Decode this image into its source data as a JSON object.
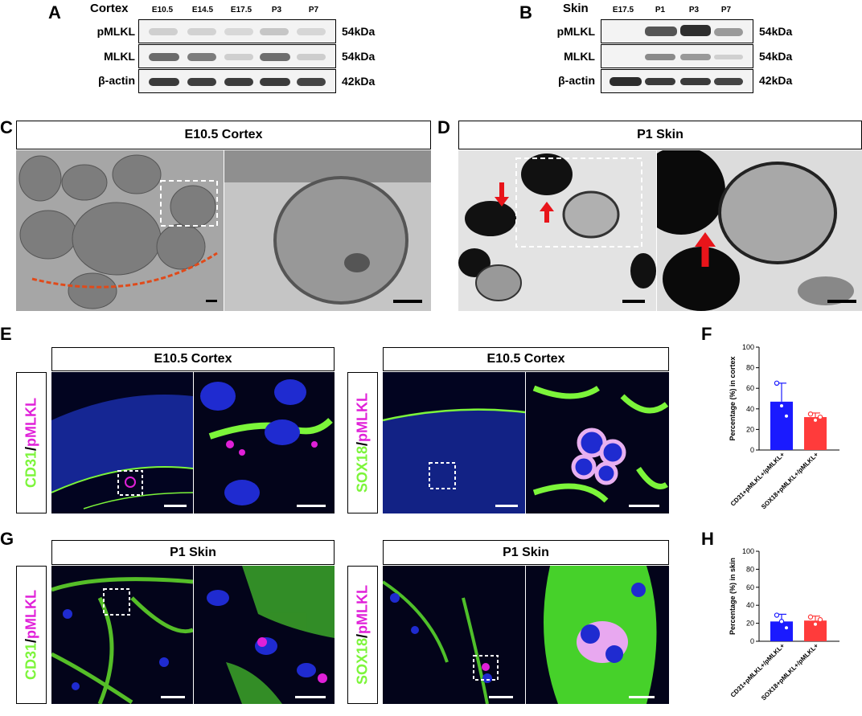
{
  "panels": {
    "A": "A",
    "B": "B",
    "C": "C",
    "D": "D",
    "E": "E",
    "F": "F",
    "G": "G",
    "H": "H"
  },
  "blotA": {
    "title": "Cortex",
    "lanes": [
      "E10.5",
      "E14.5",
      "E17.5",
      "P3",
      "P7"
    ],
    "rows": [
      {
        "label": "pMLKL",
        "kda": "54kDa"
      },
      {
        "label": "MLKL",
        "kda": "54kDa"
      },
      {
        "label": "β-actin",
        "kda": "42kDa"
      }
    ]
  },
  "blotB": {
    "title": "Skin",
    "lanes": [
      "E17.5",
      "P1",
      "P3",
      "P7"
    ],
    "rows": [
      {
        "label": "pMLKL",
        "kda": "54kDa"
      },
      {
        "label": "MLKL",
        "kda": "54kDa"
      },
      {
        "label": "β-actin",
        "kda": "42kDa"
      }
    ]
  },
  "emC": {
    "title": "E10.5  Cortex"
  },
  "emD": {
    "title": "P1 Skin"
  },
  "fluorE": {
    "left_title": "E10.5 Cortex",
    "right_title": "E10.5 Cortex",
    "left_marker": "CD31",
    "right_marker": "SOX18",
    "stain": "pMLKL",
    "sep": "/"
  },
  "fluorG": {
    "left_title": "P1 Skin",
    "right_title": "P1 Skin",
    "left_marker": "CD31",
    "right_marker": "SOX18",
    "stain": "pMLKL",
    "sep": "/"
  },
  "colors": {
    "green": "#7cf53a",
    "magenta": "#e020d8",
    "blue_bar": "#1a1aff",
    "red_bar": "#ff3b3b",
    "arrow": "#e8141a",
    "trace": "#e04a1a"
  },
  "chart_data": [
    {
      "type": "bar",
      "ylabel": "Percentage (%) in cortex",
      "ylim": [
        0,
        100
      ],
      "yticks": [
        0,
        20,
        40,
        60,
        80,
        100
      ],
      "categories": [
        "CD31+pMLKL+/pMLKL+",
        "SOX18+pMLKL+/pMLKL+"
      ],
      "values": [
        47,
        32
      ],
      "errors": [
        18,
        4
      ],
      "points": [
        [
          65,
          43,
          33
        ],
        [
          35,
          29,
          32
        ]
      ]
    },
    {
      "type": "bar",
      "ylabel": "Percentage (%) in skin",
      "ylim": [
        0,
        100
      ],
      "yticks": [
        0,
        20,
        40,
        60,
        80,
        100
      ],
      "categories": [
        "CD31+pMLKL+/pMLKL+",
        "SOX18+pMLKL+/pMLKL+"
      ],
      "values": [
        22,
        23
      ],
      "errors": [
        8,
        5
      ],
      "points": [
        [
          29,
          22,
          15
        ],
        [
          27,
          19,
          24
        ]
      ]
    }
  ]
}
